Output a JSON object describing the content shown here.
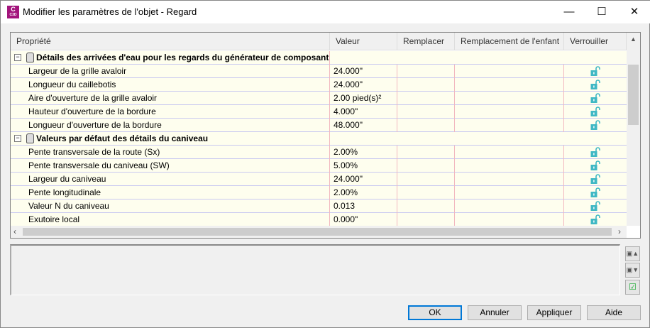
{
  "window": {
    "title": "Modifier les paramètres de l'objet - Regard",
    "app_icon": "C",
    "app_icon_sub": "C3D",
    "minimize": "—",
    "maximize": "☐",
    "close": "✕"
  },
  "grid": {
    "columns": [
      "Propriété",
      "Valeur",
      "Remplacer",
      "Remplacement de l'enfant",
      "Verrouiller"
    ],
    "groups": [
      {
        "label": "Détails des arrivées d'eau pour les regards du générateur de composants",
        "rows": [
          {
            "label": "Largeur de la grille avaloir",
            "value": "24.000\"",
            "locked": false
          },
          {
            "label": "Longueur du caillebotis",
            "value": "24.000\"",
            "locked": false
          },
          {
            "label": "Aire d'ouverture de la grille avaloir",
            "value": "2.00 pied(s)²",
            "locked": false
          },
          {
            "label": "Hauteur d'ouverture de la bordure",
            "value": "4.000\"",
            "locked": false
          },
          {
            "label": "Longueur d'ouverture de la bordure",
            "value": "48.000\"",
            "locked": false
          }
        ]
      },
      {
        "label": "Valeurs par défaut des détails du caniveau",
        "rows": [
          {
            "label": "Pente transversale de la route (Sx)",
            "value": "2.00%",
            "locked": false
          },
          {
            "label": "Pente transversale du caniveau (SW)",
            "value": "5.00%",
            "locked": false
          },
          {
            "label": "Largeur du caniveau",
            "value": "24.000\"",
            "locked": false
          },
          {
            "label": "Pente longitudinale",
            "value": "2.00%",
            "locked": false
          },
          {
            "label": "Valeur N du caniveau",
            "value": "0.013",
            "locked": false
          },
          {
            "label": "Exutoire local",
            "value": "0.000\"",
            "locked": false
          }
        ]
      }
    ],
    "lock_color": "#3fb8c4"
  },
  "buttons": {
    "ok": "OK",
    "cancel": "Annuler",
    "apply": "Appliquer",
    "help": "Aide"
  }
}
